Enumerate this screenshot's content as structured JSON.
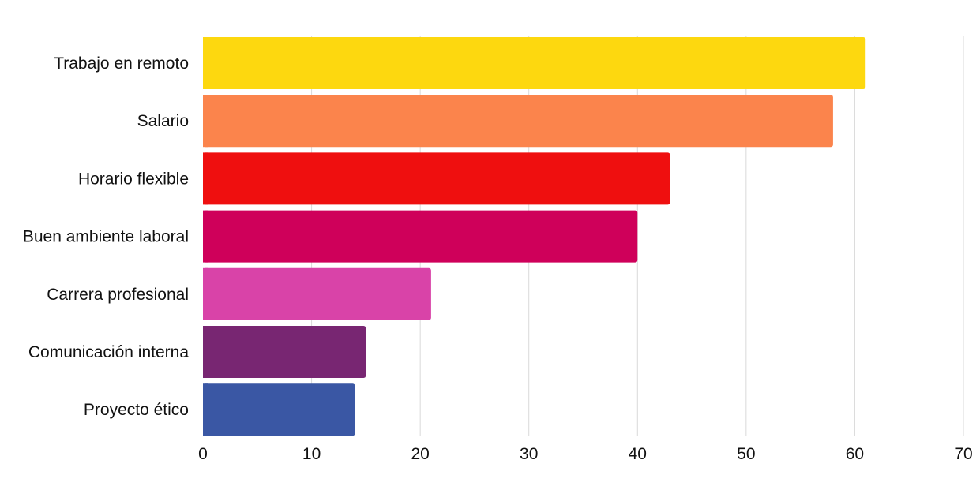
{
  "chart_data": {
    "type": "bar",
    "orientation": "horizontal",
    "categories": [
      "Trabajo en remoto",
      "Salario",
      "Horario flexible",
      "Buen ambiente laboral",
      "Carrera profesional",
      "Comunicación interna",
      "Proyecto ético"
    ],
    "values": [
      61,
      58,
      43,
      40,
      21,
      15,
      14
    ],
    "colors": [
      "#fdd80f",
      "#fb844c",
      "#ef0f0f",
      "#cf005a",
      "#d943a8",
      "#782672",
      "#3a57a4"
    ],
    "xlim": [
      0,
      70
    ],
    "x_ticks": [
      "0",
      "10",
      "20",
      "30",
      "40",
      "50",
      "60",
      "70"
    ],
    "grid": "vertical",
    "legend": "none",
    "title": "",
    "xlabel": "",
    "ylabel": ""
  }
}
